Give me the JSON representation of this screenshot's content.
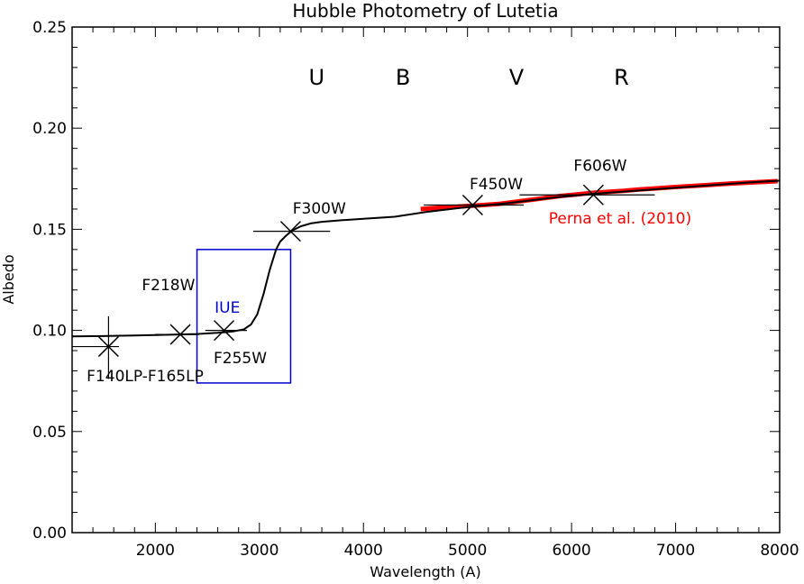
{
  "chart_data": {
    "type": "scatter",
    "title": "Hubble Photometry of Lutetia",
    "xlabel": "Wavelength (A)",
    "ylabel": "Albedo",
    "xlim": [
      1200,
      8000
    ],
    "ylim": [
      0.0,
      0.25
    ],
    "x_ticks": [
      2000,
      3000,
      4000,
      5000,
      6000,
      7000,
      8000
    ],
    "y_ticks": [
      0.0,
      0.05,
      0.1,
      0.15,
      0.2,
      0.25
    ],
    "y_tick_labels": [
      "0.00",
      "0.05",
      "0.10",
      "0.15",
      "0.20",
      "0.25"
    ],
    "grid": false,
    "band_labels": [
      {
        "text": "U",
        "x": 3550,
        "y": 0.225
      },
      {
        "text": "B",
        "x": 4380,
        "y": 0.225
      },
      {
        "text": "V",
        "x": 5470,
        "y": 0.225
      },
      {
        "text": "R",
        "x": 6480,
        "y": 0.225
      }
    ],
    "photometry": [
      {
        "label": "F140LP-F165LP",
        "x": 1550,
        "y": 0.092,
        "xerr": [
          1200,
          1650
        ],
        "yerr": [
          0.076,
          0.107
        ]
      },
      {
        "label": "F218W",
        "x": 2240,
        "y": 0.098,
        "xerr": [
          2000,
          2420
        ]
      },
      {
        "label": "F255W",
        "x": 2660,
        "y": 0.1,
        "xerr": [
          2480,
          2880
        ]
      },
      {
        "label": "F300W",
        "x": 3300,
        "y": 0.149,
        "xerr": [
          2940,
          3680
        ]
      },
      {
        "label": "F450W",
        "x": 5050,
        "y": 0.162,
        "xerr": [
          4580,
          5540
        ]
      },
      {
        "label": "F606W",
        "x": 6210,
        "y": 0.167,
        "xerr": [
          5500,
          6800
        ]
      }
    ],
    "model_curve": {
      "x": [
        1200,
        1500,
        1800,
        2100,
        2400,
        2600,
        2750,
        2850,
        2920,
        2980,
        3040,
        3100,
        3160,
        3200,
        3260,
        3320,
        3400,
        3500,
        3600,
        3800,
        4000,
        4300,
        4600,
        5000,
        5400,
        5800,
        6200,
        6600,
        7000,
        7400,
        7800,
        8000
      ],
      "y": [
        0.097,
        0.0972,
        0.0975,
        0.0978,
        0.0982,
        0.0988,
        0.0995,
        0.1005,
        0.103,
        0.108,
        0.118,
        0.13,
        0.14,
        0.144,
        0.147,
        0.1495,
        0.1515,
        0.153,
        0.1537,
        0.1545,
        0.1552,
        0.1562,
        0.1585,
        0.161,
        0.163,
        0.1655,
        0.1675,
        0.169,
        0.1705,
        0.172,
        0.1735,
        0.174
      ]
    },
    "reference_spectrum": {
      "label": "Perna et al. (2010)",
      "color": "#ff0000",
      "x": [
        4550,
        4700,
        4850,
        5000,
        5150,
        5300,
        5450,
        5600,
        5750,
        5900,
        6050,
        6200,
        6350,
        6500,
        6650,
        6800,
        6950,
        7100,
        7250,
        7400,
        7550,
        7700,
        7850,
        7980
      ],
      "y": [
        0.16,
        0.1605,
        0.161,
        0.1615,
        0.162,
        0.1625,
        0.1635,
        0.1645,
        0.1655,
        0.1665,
        0.1672,
        0.168,
        0.1685,
        0.169,
        0.1697,
        0.1702,
        0.1707,
        0.1712,
        0.1717,
        0.1722,
        0.1727,
        0.1731,
        0.1735,
        0.1738
      ]
    },
    "iue_box": {
      "label": "IUE",
      "color": "#0000cc",
      "x": [
        2400,
        3300
      ],
      "y": [
        0.074,
        0.14
      ]
    }
  }
}
